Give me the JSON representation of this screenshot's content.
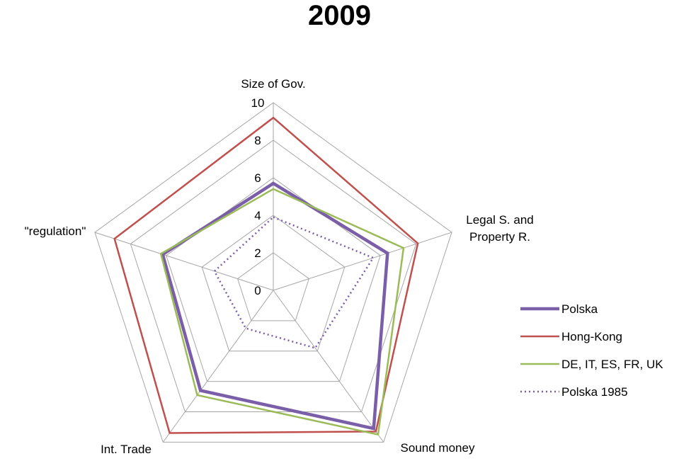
{
  "chart_data": {
    "type": "radar",
    "title": "2009",
    "axes": [
      "Size of Gov.",
      "Legal S. and\nProperty R.",
      "Sound money",
      "Int. Trade",
      "\"regulation\""
    ],
    "rlim": [
      0,
      10
    ],
    "ticks": [
      "0",
      "2",
      "4",
      "6",
      "8",
      "10"
    ],
    "tick_values": [
      0,
      2,
      4,
      6,
      8,
      10
    ],
    "grid": true,
    "legend_position": "right",
    "series": [
      {
        "name": "Polska",
        "values": [
          5.7,
          6.4,
          9.1,
          6.6,
          6.2
        ],
        "color": "#7b5ea8",
        "style": "solid-thick"
      },
      {
        "name": "Hong-Kong",
        "values": [
          9.2,
          8.1,
          9.3,
          9.4,
          8.9
        ],
        "color": "#c0504d",
        "style": "solid"
      },
      {
        "name": "DE, IT, ES, FR, UK",
        "values": [
          5.4,
          7.3,
          9.5,
          6.9,
          6.3
        ],
        "color": "#9bbb59",
        "style": "solid"
      },
      {
        "name": "Polska 1985",
        "values": [
          3.9,
          5.6,
          3.8,
          2.5,
          3.3
        ],
        "color": "#7b5ea8",
        "style": "dotted"
      }
    ]
  }
}
